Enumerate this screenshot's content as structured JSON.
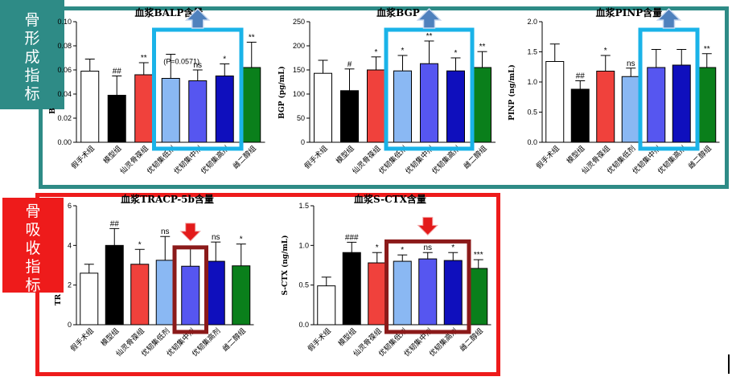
{
  "tags": {
    "formation": [
      "骨",
      "形",
      "成",
      "指",
      "标"
    ],
    "resorption": [
      "骨",
      "吸",
      "收",
      "指",
      "标"
    ]
  },
  "colors": {
    "teal": "#2e8b86",
    "red_frame": "#ee1b1b",
    "cyan_box": "#1ab3e8",
    "dark_red_box": "#8b1a1a",
    "up_arrow": "#4f81bd",
    "down_arrow": "#e31a1a",
    "bars": [
      "#ffffff",
      "#000000",
      "#f0413c",
      "#8ab8f3",
      "#5656f0",
      "#0f0fbd",
      "#0a7f1b"
    ]
  },
  "chart_data": [
    {
      "id": "balp",
      "type": "bar",
      "title": "血浆BALP含量",
      "ylabel": "B",
      "ylim": [
        0,
        0.1
      ],
      "yticks": [
        "0.00",
        "0.02",
        "0.04",
        "0.06",
        "0.08",
        "0.10"
      ],
      "categories": [
        "假手术组",
        "模型组",
        "仙灵骨葆组",
        "优韧集低剂",
        "优韧集中剂",
        "优韧集高剂",
        "雌二醇组"
      ],
      "values": [
        0.059,
        0.039,
        0.056,
        0.053,
        0.051,
        0.055,
        0.062
      ],
      "errors": [
        0.01,
        0.016,
        0.01,
        0.02,
        0.009,
        0.01,
        0.021
      ],
      "significance": [
        "",
        "##",
        "**",
        "",
        "ns",
        "*",
        "**"
      ],
      "annotation": "(P=0.0571)",
      "highlight": "cyan",
      "highlight_groups": [
        3,
        5
      ],
      "arrow": "up"
    },
    {
      "id": "bgp",
      "type": "bar",
      "title": "血浆BGP",
      "ylabel": "BGP (pg/mL)",
      "ylim": [
        0,
        250
      ],
      "yticks": [
        "0",
        "50",
        "100",
        "150",
        "200",
        "250"
      ],
      "categories": [
        "假手术组",
        "模型组",
        "仙灵骨葆组",
        "优韧集低剂",
        "优韧集中剂",
        "优韧集高剂",
        "雌二醇组"
      ],
      "values": [
        143,
        107,
        150,
        148,
        163,
        148,
        155
      ],
      "errors": [
        27,
        45,
        27,
        32,
        47,
        27,
        33
      ],
      "significance": [
        "",
        "#",
        "*",
        "*",
        "**",
        "*",
        "**"
      ],
      "highlight": "cyan",
      "highlight_groups": [
        3,
        5
      ],
      "arrow": "up"
    },
    {
      "id": "pinp",
      "type": "bar",
      "title": "血浆PINP含量",
      "ylabel": "PINP (ng/mL)",
      "ylim": [
        0,
        2.0
      ],
      "yticks": [
        "0.0",
        "0.5",
        "1.0",
        "1.5",
        "2.0"
      ],
      "categories": [
        "假手术组",
        "模型组",
        "仙灵骨葆组",
        "优韧集低剂",
        "优韧集中剂",
        "优韧集高剂",
        "雌二醇组"
      ],
      "values": [
        1.34,
        0.88,
        1.18,
        1.09,
        1.24,
        1.28,
        1.24
      ],
      "errors": [
        0.29,
        0.14,
        0.26,
        0.14,
        0.3,
        0.26,
        0.23
      ],
      "significance": [
        "",
        "##",
        "*",
        "ns",
        "",
        "",
        "**"
      ],
      "highlight": "cyan",
      "highlight_groups": [
        4,
        5
      ],
      "arrow": "up"
    },
    {
      "id": "tracp",
      "type": "bar",
      "title": "血浆TRACP-5b含量",
      "ylabel": "TR",
      "ylim": [
        0,
        6
      ],
      "yticks": [
        "0",
        "2",
        "4",
        "6"
      ],
      "categories": [
        "假手术组",
        "模型组",
        "仙灵骨葆组",
        "优韧集低剂",
        "优韧集中剂",
        "优韧集高剂",
        "雌二醇组"
      ],
      "values": [
        2.6,
        4.0,
        3.05,
        3.25,
        2.95,
        3.2,
        2.97
      ],
      "errors": [
        0.45,
        0.85,
        0.75,
        1.2,
        0.95,
        0.97,
        1.1
      ],
      "significance": [
        "",
        "##",
        "*",
        "ns",
        "",
        "ns",
        "*"
      ],
      "highlight": "darkred",
      "highlight_groups": [
        4,
        4
      ],
      "arrow": "down"
    },
    {
      "id": "sctx",
      "type": "bar",
      "title": "血浆S-CTX含量",
      "ylabel": "S-CTX (ng/mL)",
      "ylim": [
        0,
        1.5
      ],
      "yticks": [
        "0.0",
        "0.5",
        "1.0",
        "1.5"
      ],
      "categories": [
        "假手术组",
        "模型组",
        "仙灵骨葆组",
        "优韧集低剂",
        "优韧集中剂",
        "优韧集高剂",
        "雌二醇组"
      ],
      "values": [
        0.49,
        0.91,
        0.78,
        0.8,
        0.83,
        0.81,
        0.71
      ],
      "errors": [
        0.11,
        0.13,
        0.13,
        0.08,
        0.08,
        0.1,
        0.11
      ],
      "significance": [
        "",
        "###",
        "*",
        "*",
        "ns",
        "*",
        "***"
      ],
      "highlight": "darkred",
      "highlight_groups": [
        3,
        5
      ],
      "arrow": "down"
    }
  ]
}
